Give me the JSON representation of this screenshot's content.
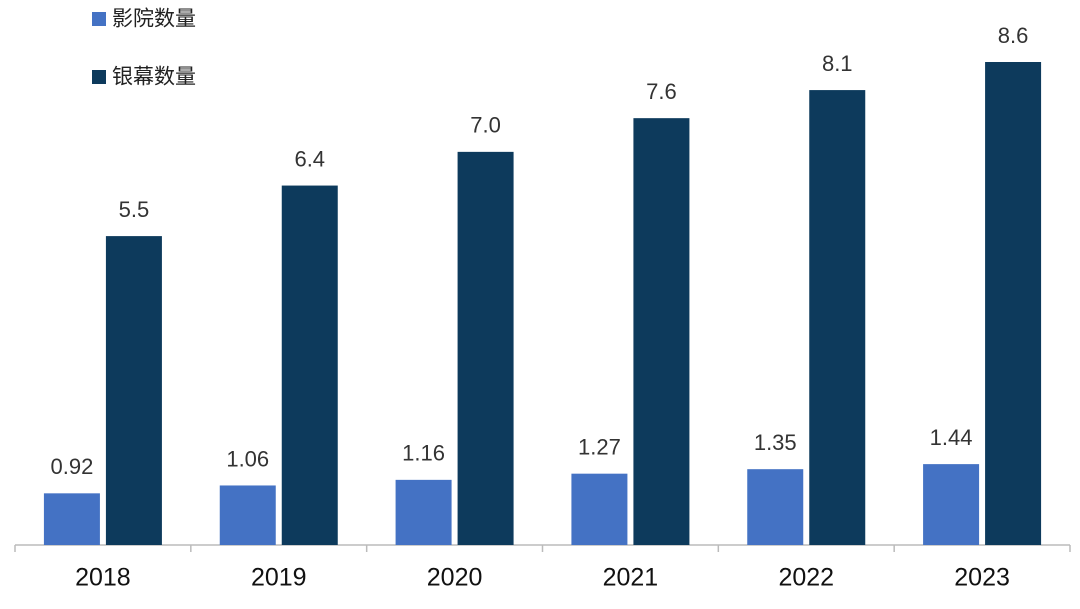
{
  "chart_data": {
    "type": "bar",
    "categories": [
      "2018",
      "2019",
      "2020",
      "2021",
      "2022",
      "2023"
    ],
    "series": [
      {
        "name": "影院数量",
        "color": "#4472c4",
        "values": [
          0.92,
          1.06,
          1.16,
          1.27,
          1.35,
          1.44
        ]
      },
      {
        "name": "银幕数量",
        "color": "#0d3a5c",
        "values": [
          5.5,
          6.4,
          7.0,
          7.6,
          8.1,
          8.6
        ],
        "value_labels": [
          "5.5",
          "6.4",
          "7.0",
          "7.6",
          "8.1",
          "8.6"
        ]
      }
    ]
  }
}
